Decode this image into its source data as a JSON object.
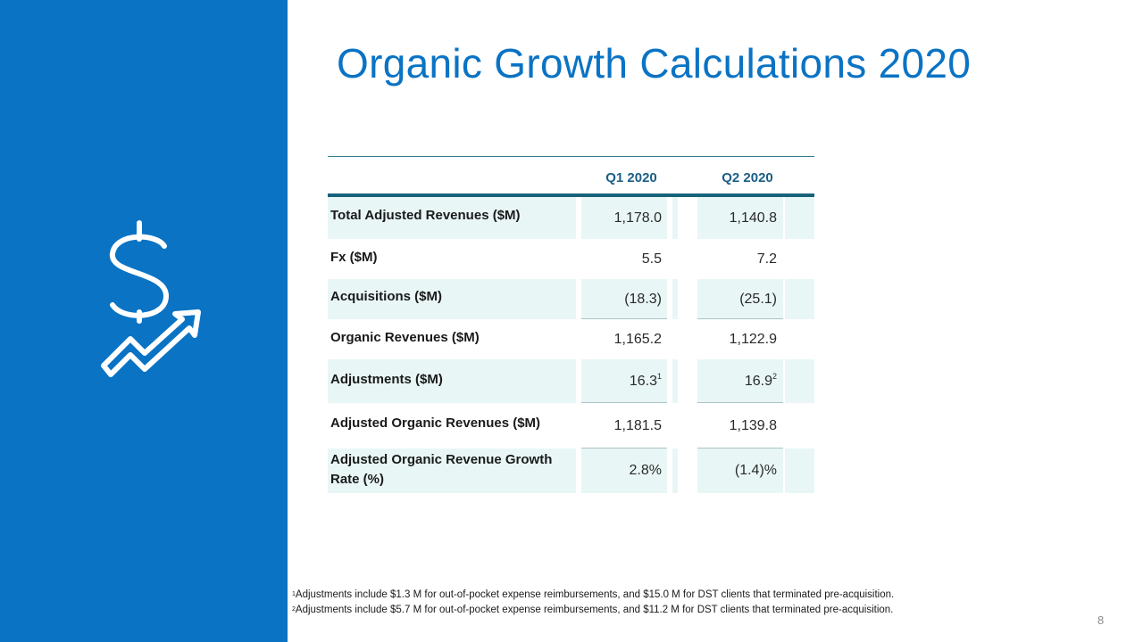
{
  "slide": {
    "title": "Organic Growth Calculations 2020",
    "page_number": "8",
    "icon": "dollar-growth-arrow-icon",
    "accent_color": "#0a73c4"
  },
  "table": {
    "columns": [
      "Q1 2020",
      "Q2 2020"
    ],
    "rows": [
      {
        "label": "Total Adjusted Revenues ($M)",
        "q1": "1,178.0",
        "q1_note": "",
        "q2": "1,140.8",
        "q2_note": ""
      },
      {
        "label": "Fx ($M)",
        "q1": "5.5",
        "q1_note": "",
        "q2": "7.2",
        "q2_note": ""
      },
      {
        "label": "Acquisitions ($M)",
        "q1": "(18.3)",
        "q1_note": "",
        "q2": "(25.1)",
        "q2_note": ""
      },
      {
        "label": "Organic Revenues ($M)",
        "q1": "1,165.2",
        "q1_note": "",
        "q2": "1,122.9",
        "q2_note": ""
      },
      {
        "label": "Adjustments ($M)",
        "q1": "16.3",
        "q1_note": "1",
        "q2": "16.9",
        "q2_note": "2"
      },
      {
        "label": "Adjusted Organic Revenues ($M)",
        "q1": "1,181.5",
        "q1_note": "",
        "q2": "1,139.8",
        "q2_note": ""
      },
      {
        "label": "Adjusted Organic Revenue Growth Rate (%)",
        "q1": "2.8%",
        "q1_note": "",
        "q2": "(1.4)%",
        "q2_note": ""
      }
    ]
  },
  "footnotes": [
    {
      "marker": "1",
      "text": "Adjustments include $1.3 M for out-of-pocket expense reimbursements, and $15.0 M for DST clients that terminated pre-acquisition."
    },
    {
      "marker": "2",
      "text": "Adjustments include $5.7 M for out-of-pocket expense reimbursements, and $11.2 M for DST clients that terminated pre-acquisition."
    }
  ]
}
